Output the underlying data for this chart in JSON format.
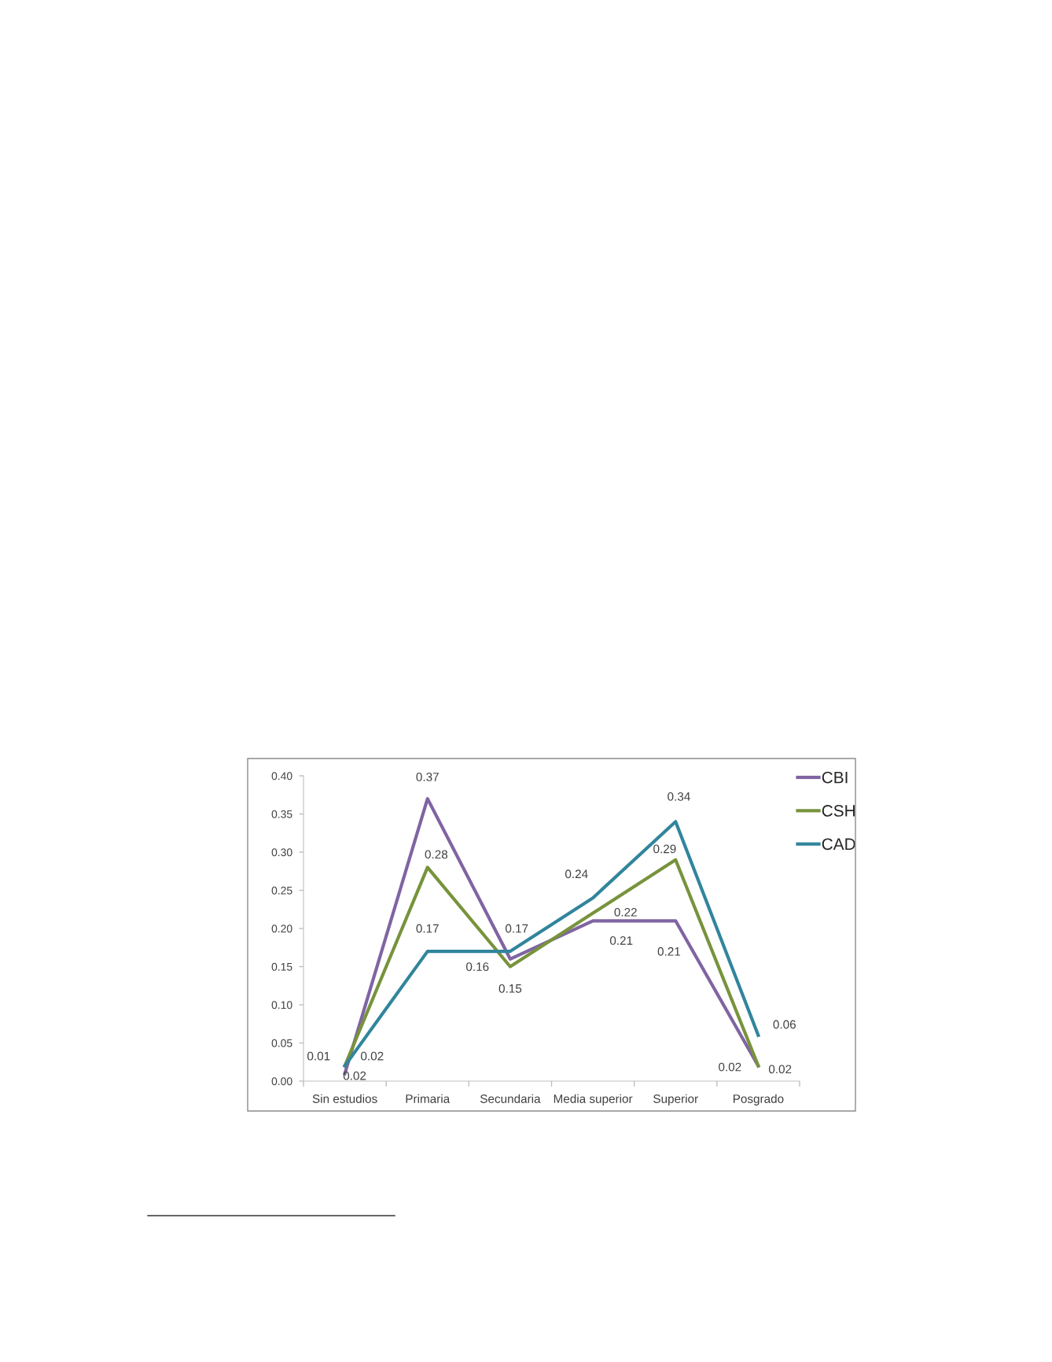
{
  "chart_data": {
    "type": "line",
    "categories": [
      "Sin estudios",
      "Primaria",
      "Secundaria",
      "Media superior",
      "Superior",
      "Posgrado"
    ],
    "series": [
      {
        "name": "CBI",
        "color": "#8064a2",
        "values": [
          0.01,
          0.37,
          0.16,
          0.21,
          0.21,
          0.02
        ]
      },
      {
        "name": "CSH",
        "color": "#77933c",
        "values": [
          0.02,
          0.28,
          0.15,
          0.22,
          0.29,
          0.02
        ]
      },
      {
        "name": "CAD",
        "color": "#31859c",
        "values": [
          0.02,
          0.17,
          0.17,
          0.24,
          0.34,
          0.06
        ]
      }
    ],
    "ylim": [
      0,
      0.4
    ],
    "yticks": [
      {
        "value": 0,
        "label": "0.00"
      },
      0.05,
      {
        "value": 0.1,
        "label": "0.10"
      },
      0.15,
      {
        "value": 0.2,
        "label": "0.20"
      },
      0.25,
      {
        "value": 0.3,
        "label": "0.30"
      },
      0.35,
      {
        "value": 0.4,
        "label": "0.40"
      }
    ],
    "data_labels": true,
    "legend": "top right"
  }
}
